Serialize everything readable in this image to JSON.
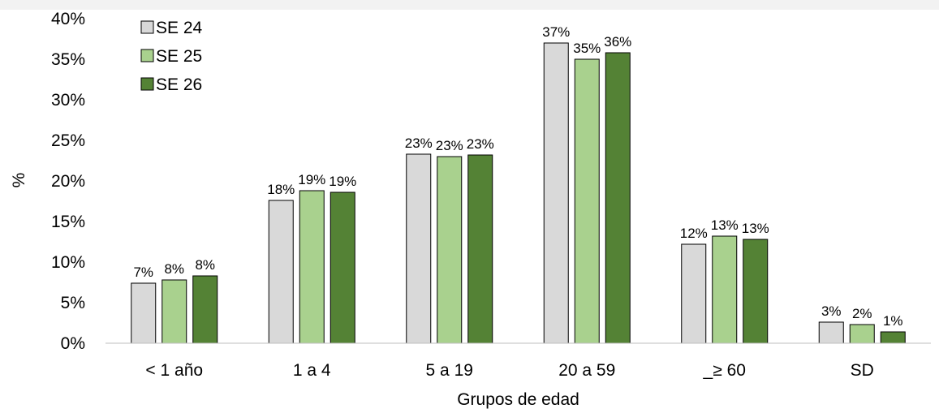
{
  "chart_data": {
    "type": "bar",
    "title": "",
    "xlabel": "Grupos de edad",
    "ylabel": "%",
    "ylim": [
      0,
      40
    ],
    "ytick_step": 5,
    "ytick_suffix": "%",
    "grid": false,
    "legend_position": "top-left",
    "categories": [
      "< 1 año",
      "1 a 4",
      "5 a 19",
      "20 a 59",
      "_≥ 60",
      "SD"
    ],
    "series": [
      {
        "name": "SE 24",
        "color": "#d9d9d9",
        "values": [
          7.4,
          17.6,
          23.3,
          37.0,
          12.2,
          2.6
        ],
        "labels": [
          "7%",
          "18%",
          "23%",
          "37%",
          "12%",
          "3%"
        ]
      },
      {
        "name": "SE 25",
        "color": "#a9d18e",
        "values": [
          7.8,
          18.8,
          23.0,
          35.0,
          13.2,
          2.3
        ],
        "labels": [
          "8%",
          "19%",
          "23%",
          "35%",
          "13%",
          "2%"
        ]
      },
      {
        "name": "SE 26",
        "color": "#548235",
        "values": [
          8.3,
          18.6,
          23.2,
          35.8,
          12.8,
          1.4
        ],
        "labels": [
          "8%",
          "19%",
          "23%",
          "36%",
          "13%",
          "1%"
        ]
      }
    ]
  }
}
